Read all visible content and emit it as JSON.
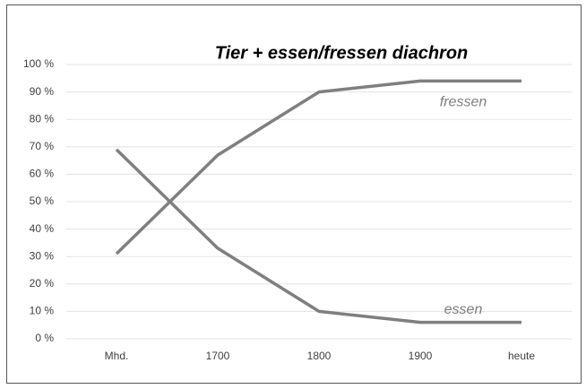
{
  "chart_data": {
    "type": "line",
    "title": "Tier + essen/fressen diachron",
    "categories": [
      "Mhd.",
      "1700",
      "1800",
      "1900",
      "heute"
    ],
    "series": [
      {
        "name": "fressen",
        "color": "#7f7f7f",
        "values": [
          31,
          67,
          90,
          94,
          94
        ]
      },
      {
        "name": "essen",
        "color": "#7f7f7f",
        "values": [
          69,
          33,
          10,
          6,
          6
        ]
      }
    ],
    "ylim": [
      0,
      100
    ],
    "yticks": [
      {
        "value": 0,
        "label": "0 %"
      },
      {
        "value": 10,
        "label": "10 %"
      },
      {
        "value": 20,
        "label": "20 %"
      },
      {
        "value": 30,
        "label": "30 %"
      },
      {
        "value": 40,
        "label": "40 %"
      },
      {
        "value": 50,
        "label": "50 %"
      },
      {
        "value": 60,
        "label": "60 %"
      },
      {
        "value": 70,
        "label": "70 %"
      },
      {
        "value": 80,
        "label": "80 %"
      },
      {
        "value": 90,
        "label": "90 %"
      },
      {
        "value": 100,
        "label": "100 %"
      }
    ],
    "grid": true
  }
}
